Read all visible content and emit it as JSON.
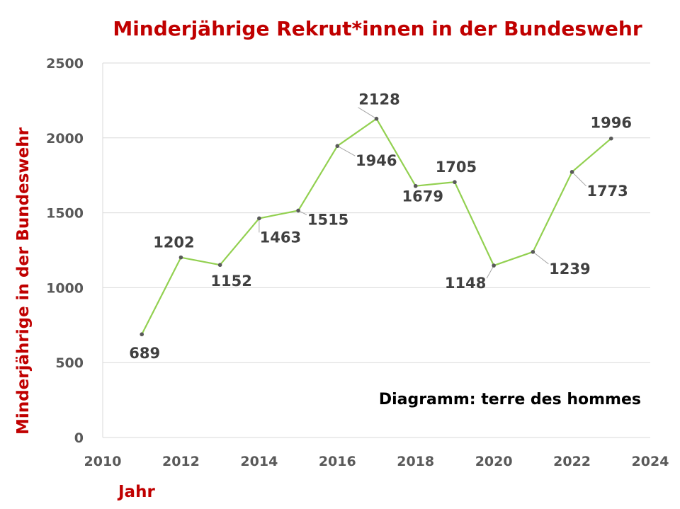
{
  "chart_data": {
    "type": "line",
    "title": "Minderjährige Rekrut*innen in der Bundeswehr",
    "xlabel": "Jahr",
    "ylabel": "Minderjährige in der Bundeswehr",
    "annotation": "Diagramm: terre des hommes",
    "xlim": [
      2010,
      2024
    ],
    "ylim": [
      0,
      2500
    ],
    "x_ticks": [
      "2010",
      "2012",
      "2014",
      "2016",
      "2018",
      "2020",
      "2022",
      "2024"
    ],
    "y_ticks": [
      "0",
      "500",
      "1000",
      "1500",
      "2000",
      "2500"
    ],
    "grid": "horizontal",
    "legend": "none",
    "colors": {
      "line": "#92d050",
      "marker": "#595959",
      "title": "#c00000"
    },
    "series": [
      {
        "x": [
          2011,
          2012,
          2013,
          2014,
          2015,
          2016,
          2017,
          2018,
          2019,
          2020,
          2021,
          2022,
          2023
        ],
        "values": [
          689,
          1202,
          1152,
          1463,
          1515,
          1946,
          2128,
          1679,
          1705,
          1148,
          1239,
          1773,
          1996
        ],
        "labels": [
          "689",
          "1202",
          "1152",
          "1463",
          "1515",
          "1946",
          "2128",
          "1679",
          "1705",
          "1148",
          "1239",
          "1773",
          "1996"
        ]
      }
    ]
  }
}
